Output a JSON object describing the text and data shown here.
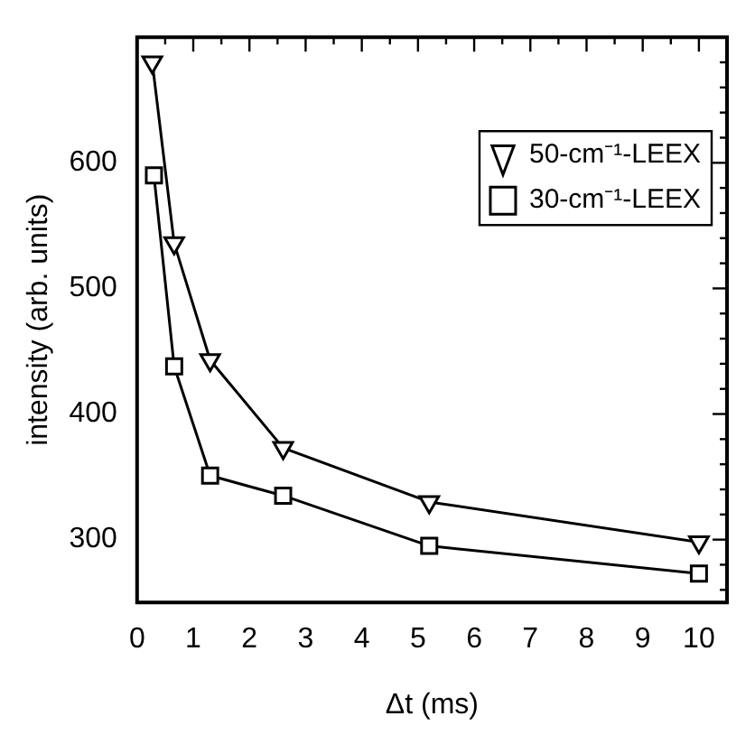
{
  "chart_data": {
    "type": "line",
    "xlabel": "Δt (ms)",
    "ylabel": "intensity (arb. units)",
    "xlim": [
      0,
      10.5
    ],
    "xticks": [
      0,
      {
        "value": 0.5,
        "label": null
      },
      1,
      {
        "value": 1.5,
        "label": null
      },
      2,
      {
        "value": 2.5,
        "label": null
      },
      3,
      {
        "value": 3.5,
        "label": null
      },
      4,
      {
        "value": 4.5,
        "label": null
      },
      5,
      {
        "value": 5.5,
        "label": null
      },
      6,
      {
        "value": 6.5,
        "label": null
      },
      7,
      {
        "value": 7.5,
        "label": null
      },
      8,
      {
        "value": 8.5,
        "label": null
      },
      9,
      {
        "value": 9.5,
        "label": null
      },
      10
    ],
    "ylim": [
      250,
      700
    ],
    "yticks": [
      {
        "value": 260,
        "label": null
      },
      {
        "value": 280,
        "label": null
      },
      300,
      {
        "value": 320,
        "label": null
      },
      {
        "value": 340,
        "label": null
      },
      {
        "value": 360,
        "label": null
      },
      {
        "value": 380,
        "label": null
      },
      400,
      {
        "value": 420,
        "label": null
      },
      {
        "value": 440,
        "label": null
      },
      {
        "value": 460,
        "label": null
      },
      {
        "value": 480,
        "label": null
      },
      500,
      {
        "value": 520,
        "label": null
      },
      {
        "value": 540,
        "label": null
      },
      {
        "value": 560,
        "label": null
      },
      {
        "value": 580,
        "label": null
      },
      600,
      {
        "value": 620,
        "label": null
      },
      {
        "value": 640,
        "label": null
      },
      {
        "value": 660,
        "label": null
      },
      {
        "value": 680,
        "label": null
      },
      {
        "value": 700,
        "label": null
      }
    ],
    "legend": "top right",
    "grid": false,
    "line_style": "solid",
    "series": [
      {
        "name": "50-cm⁻¹-LEEX",
        "color": "#000000",
        "marker": "triangle",
        "x": [
          0.27,
          0.66,
          1.3,
          2.6,
          5.2,
          10.0
        ],
        "values": [
          680,
          536,
          443,
          373,
          330,
          298
        ]
      },
      {
        "name": "30-cm⁻¹-LEEX",
        "color": "#000000",
        "marker": "square",
        "x": [
          0.3,
          0.66,
          1.3,
          2.6,
          5.2,
          10.0
        ],
        "values": [
          590,
          438,
          351,
          335,
          295,
          273
        ]
      }
    ]
  }
}
